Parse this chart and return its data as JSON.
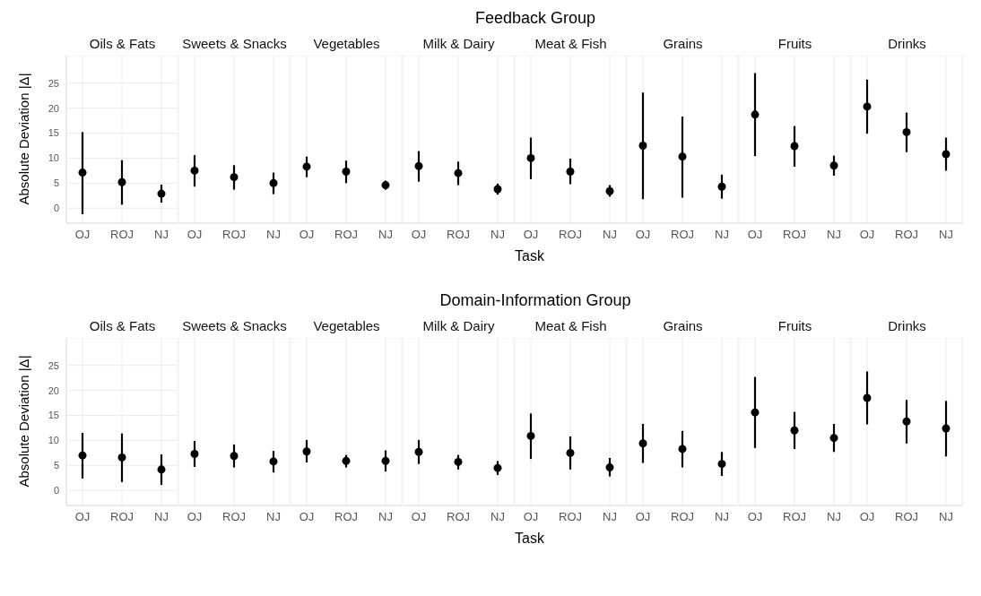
{
  "chart_data": [
    {
      "type": "scatter",
      "title": "Oils & Fats",
      "annotations": [
        "Feedback Group"
      ],
      "ylabel": "Absolute Deviation |Δ|",
      "categories": [
        "OJ",
        "ROJ",
        "NJ"
      ],
      "values": [
        7.1,
        5.2,
        2.9
      ],
      "errors": [
        [
          -1.2,
          15.2
        ],
        [
          0.7,
          9.6
        ],
        [
          1.1,
          4.7
        ]
      ],
      "color": "#000000",
      "marker": "circle",
      "ylim": [
        -3,
        30.5
      ],
      "yticks": [
        0,
        5,
        10,
        15,
        20,
        25
      ],
      "grid": true
    },
    {
      "type": "scatter",
      "title": "Sweets & Snacks",
      "categories": [
        "OJ",
        "ROJ",
        "NJ"
      ],
      "values": [
        7.5,
        6.2,
        5.0
      ],
      "errors": [
        [
          4.3,
          10.6
        ],
        [
          3.7,
          8.6
        ],
        [
          2.8,
          7.1
        ]
      ],
      "color": "#000000",
      "marker": "circle",
      "ylim": [
        -3,
        30.5
      ],
      "yticks": [
        0,
        5,
        10,
        15,
        20,
        25
      ],
      "grid": true,
      "tick_labels": "x"
    },
    {
      "type": "scatter",
      "title": "Vegetables",
      "categories": [
        "OJ",
        "ROJ",
        "NJ"
      ],
      "values": [
        8.3,
        7.3,
        4.6
      ],
      "errors": [
        [
          6.2,
          10.3
        ],
        [
          5.0,
          9.5
        ],
        [
          3.7,
          5.5
        ]
      ],
      "color": "#000000",
      "marker": "circle",
      "ylim": [
        -3,
        30.5
      ],
      "yticks": [
        0,
        5,
        10,
        15,
        20,
        25
      ],
      "grid": true,
      "tick_labels": "x"
    },
    {
      "type": "scatter",
      "title": "Milk & Dairy",
      "categories": [
        "OJ",
        "ROJ",
        "NJ"
      ],
      "values": [
        8.4,
        7.0,
        3.8
      ],
      "errors": [
        [
          5.3,
          11.4
        ],
        [
          4.6,
          9.3
        ],
        [
          2.7,
          4.9
        ]
      ],
      "color": "#000000",
      "marker": "circle",
      "ylim": [
        -3,
        30.5
      ],
      "yticks": [
        0,
        5,
        10,
        15,
        20,
        25
      ],
      "grid": true,
      "tick_labels": "x"
    },
    {
      "type": "scatter",
      "title": "Meat & Fish",
      "xlabel": "Task",
      "categories": [
        "OJ",
        "ROJ",
        "NJ"
      ],
      "values": [
        10.0,
        7.3,
        3.4
      ],
      "errors": [
        [
          5.8,
          14.1
        ],
        [
          4.8,
          9.9
        ],
        [
          2.3,
          4.6
        ]
      ],
      "color": "#000000",
      "marker": "circle",
      "ylim": [
        -3,
        30.5
      ],
      "yticks": [
        0,
        5,
        10,
        15,
        20,
        25
      ],
      "grid": true,
      "tick_labels": "x"
    },
    {
      "type": "scatter",
      "title": "Grains",
      "categories": [
        "OJ",
        "ROJ",
        "NJ"
      ],
      "values": [
        12.5,
        10.3,
        4.3
      ],
      "errors": [
        [
          1.8,
          23.1
        ],
        [
          2.1,
          18.3
        ],
        [
          1.9,
          6.7
        ]
      ],
      "color": "#000000",
      "marker": "circle",
      "ylim": [
        -3,
        30.5
      ],
      "yticks": [
        0,
        5,
        10,
        15,
        20,
        25
      ],
      "grid": true,
      "tick_labels": "x"
    },
    {
      "type": "scatter",
      "title": "Fruits",
      "categories": [
        "OJ",
        "ROJ",
        "NJ"
      ],
      "values": [
        18.7,
        12.4,
        8.5
      ],
      "errors": [
        [
          10.4,
          27.0
        ],
        [
          8.3,
          16.4
        ],
        [
          6.5,
          10.5
        ]
      ],
      "color": "#000000",
      "marker": "circle",
      "ylim": [
        -3,
        30.5
      ],
      "yticks": [
        0,
        5,
        10,
        15,
        20,
        25
      ],
      "grid": true,
      "tick_labels": "x"
    },
    {
      "type": "scatter",
      "title": "Drinks",
      "categories": [
        "OJ",
        "ROJ",
        "NJ"
      ],
      "values": [
        20.3,
        15.2,
        10.8
      ],
      "errors": [
        [
          14.9,
          25.7
        ],
        [
          11.2,
          19.1
        ],
        [
          7.5,
          14.1
        ]
      ],
      "color": "#000000",
      "marker": "circle",
      "ylim": [
        -3,
        30.5
      ],
      "yticks": [
        0,
        5,
        10,
        15,
        20,
        25
      ],
      "grid": true,
      "tick_labels": "x"
    },
    {
      "type": "scatter",
      "title": "Oils & Fats",
      "annotations": [
        "Domain-Information Group"
      ],
      "ylabel": "Absolute Deviation |Δ|",
      "categories": [
        "OJ",
        "ROJ",
        "NJ"
      ],
      "values": [
        7.0,
        6.6,
        4.2
      ],
      "errors": [
        [
          2.4,
          11.5
        ],
        [
          1.7,
          11.4
        ],
        [
          1.1,
          7.2
        ]
      ],
      "color": "#000000",
      "marker": "circle",
      "ylim": [
        -3,
        30.5
      ],
      "yticks": [
        0,
        5,
        10,
        15,
        20,
        25
      ],
      "grid": true
    },
    {
      "type": "scatter",
      "title": "Sweets & Snacks",
      "categories": [
        "OJ",
        "ROJ",
        "NJ"
      ],
      "values": [
        7.3,
        6.9,
        5.8
      ],
      "errors": [
        [
          4.7,
          9.9
        ],
        [
          4.6,
          9.2
        ],
        [
          3.6,
          7.9
        ]
      ],
      "color": "#000000",
      "marker": "circle",
      "ylim": [
        -3,
        30.5
      ],
      "yticks": [
        0,
        5,
        10,
        15,
        20,
        25
      ],
      "grid": true,
      "tick_labels": "x"
    },
    {
      "type": "scatter",
      "title": "Vegetables",
      "categories": [
        "OJ",
        "ROJ",
        "NJ"
      ],
      "values": [
        7.8,
        5.9,
        5.9
      ],
      "errors": [
        [
          5.6,
          10.1
        ],
        [
          4.6,
          7.1
        ],
        [
          3.8,
          8.0
        ]
      ],
      "color": "#000000",
      "marker": "circle",
      "ylim": [
        -3,
        30.5
      ],
      "yticks": [
        0,
        5,
        10,
        15,
        20,
        25
      ],
      "grid": true,
      "tick_labels": "x"
    },
    {
      "type": "scatter",
      "title": "Milk & Dairy",
      "categories": [
        "OJ",
        "ROJ",
        "NJ"
      ],
      "values": [
        7.7,
        5.7,
        4.5
      ],
      "errors": [
        [
          5.3,
          10.1
        ],
        [
          4.2,
          7.1
        ],
        [
          3.1,
          5.9
        ]
      ],
      "color": "#000000",
      "marker": "circle",
      "ylim": [
        -3,
        30.5
      ],
      "yticks": [
        0,
        5,
        10,
        15,
        20,
        25
      ],
      "grid": true,
      "tick_labels": "x"
    },
    {
      "type": "scatter",
      "title": "Meat & Fish",
      "xlabel": "Task",
      "categories": [
        "OJ",
        "ROJ",
        "NJ"
      ],
      "values": [
        10.9,
        7.5,
        4.6
      ],
      "errors": [
        [
          6.3,
          15.4
        ],
        [
          4.2,
          10.8
        ],
        [
          2.8,
          6.5
        ]
      ],
      "color": "#000000",
      "marker": "circle",
      "ylim": [
        -3,
        30.5
      ],
      "yticks": [
        0,
        5,
        10,
        15,
        20,
        25
      ],
      "grid": true,
      "tick_labels": "x"
    },
    {
      "type": "scatter",
      "title": "Grains",
      "categories": [
        "OJ",
        "ROJ",
        "NJ"
      ],
      "values": [
        9.4,
        8.3,
        5.3
      ],
      "errors": [
        [
          5.5,
          13.3
        ],
        [
          4.6,
          11.9
        ],
        [
          2.9,
          7.7
        ]
      ],
      "color": "#000000",
      "marker": "circle",
      "ylim": [
        -3,
        30.5
      ],
      "yticks": [
        0,
        5,
        10,
        15,
        20,
        25
      ],
      "grid": true,
      "tick_labels": "x"
    },
    {
      "type": "scatter",
      "title": "Fruits",
      "categories": [
        "OJ",
        "ROJ",
        "NJ"
      ],
      "values": [
        15.6,
        12.0,
        10.5
      ],
      "errors": [
        [
          8.5,
          22.7
        ],
        [
          8.3,
          15.7
        ],
        [
          7.7,
          13.3
        ]
      ],
      "color": "#000000",
      "marker": "circle",
      "ylim": [
        -3,
        30.5
      ],
      "yticks": [
        0,
        5,
        10,
        15,
        20,
        25
      ],
      "grid": true,
      "tick_labels": "x"
    },
    {
      "type": "scatter",
      "title": "Drinks",
      "categories": [
        "OJ",
        "ROJ",
        "NJ"
      ],
      "values": [
        18.5,
        13.8,
        12.4
      ],
      "errors": [
        [
          13.2,
          23.8
        ],
        [
          9.4,
          18.1
        ],
        [
          6.8,
          17.9
        ]
      ],
      "color": "#000000",
      "marker": "circle",
      "ylim": [
        -3,
        30.5
      ],
      "yticks": [
        0,
        5,
        10,
        15,
        20,
        25
      ],
      "grid": true,
      "tick_labels": "x"
    }
  ]
}
